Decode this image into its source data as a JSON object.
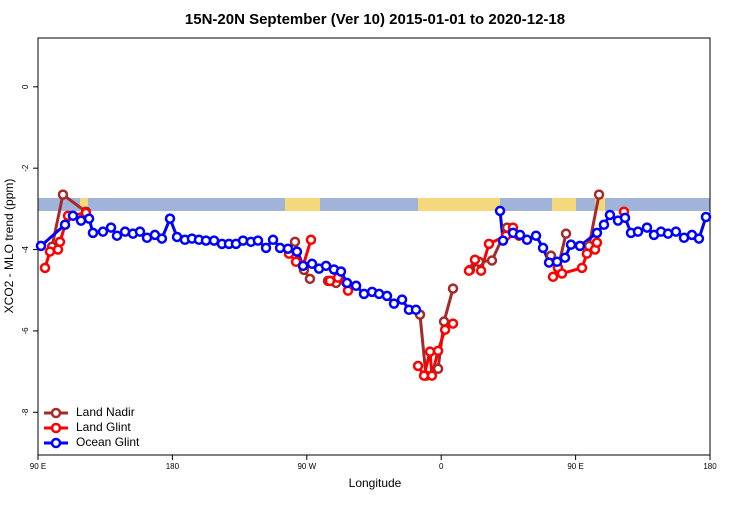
{
  "chart_data": {
    "type": "line",
    "title": "15N-20N September (Ver 10)   2015-01-01 to 2020-12-18",
    "x_label": "Longitude",
    "y_label": "XCO2 - MLO trend (ppm)",
    "xlim": [
      90,
      540
    ],
    "ylim": [
      -9.05,
      1.2
    ],
    "xticks": [
      {
        "value": 90,
        "label": "90 E"
      },
      180,
      {
        "value": 270,
        "label": "90 W"
      },
      {
        "value": 360,
        "label": "0"
      },
      {
        "value": 450,
        "label": "90 E"
      },
      {
        "value": 540,
        "label": "180"
      }
    ],
    "yticks": [
      0,
      -2,
      -4,
      -6,
      -8
    ],
    "legend": "bottomleft",
    "series": [
      {
        "name": "Land Nadir",
        "color": "#a52a2a",
        "x": [
          99.4,
          106.7,
          122.1,
          null,
          262.1,
          268.1,
          272.1,
          null,
          284.2,
          289.6,
          null,
          345.8,
          349.8,
          357.9,
          361.9,
          367.9,
          null,
          379.3,
          385.3,
          394.0,
          404.1,
          null,
          433.5,
          438.2,
          443.6,
          null,
          459.0,
          465.7
        ],
        "values": [
          -3.93,
          -2.65,
          -3.07,
          null,
          -3.81,
          -4.5,
          -4.72,
          null,
          -4.77,
          -4.82,
          null,
          -5.6,
          -7.1,
          -6.93,
          -5.77,
          -4.96,
          null,
          -4.5,
          -4.3,
          -4.27,
          -3.46,
          null,
          -4.15,
          -4.45,
          -3.61,
          null,
          -3.91,
          -2.65
        ]
      },
      {
        "name": "Land Glint",
        "color": "#ff0000",
        "x": [
          94.7,
          98.0,
          103.4,
          104.7,
          110.1,
          122.1,
          null,
          258.1,
          262.8,
          267.5,
          272.8,
          null,
          285.5,
          290.9,
          297.6,
          null,
          344.5,
          348.5,
          352.5,
          353.8,
          357.9,
          362.6,
          367.9,
          null,
          378.6,
          382.6,
          386.7,
          392.0,
          403.4,
          408.1,
          412.1,
          null,
          434.9,
          438.2,
          440.9,
          454.3,
          457.6,
          463.0,
          464.3,
          null,
          482.4
        ],
        "values": [
          -4.45,
          -4.05,
          -4.0,
          -3.81,
          -3.17,
          -3.1,
          null,
          -4.1,
          -4.3,
          -4.4,
          -3.76,
          null,
          -4.77,
          -4.69,
          -5.01,
          null,
          -6.86,
          -7.1,
          -6.51,
          -7.1,
          -6.49,
          -5.97,
          -5.82,
          null,
          -4.52,
          -4.25,
          -4.52,
          -3.86,
          -3.66,
          -3.46,
          -3.66,
          null,
          -4.67,
          -4.45,
          -4.59,
          -4.45,
          -4.1,
          -4.0,
          -3.83,
          null,
          -3.07
        ]
      },
      {
        "name": "Ocean Glint",
        "color": "#0000ff",
        "x": [
          92.0,
          108.1,
          113.4,
          118.8,
          124.2,
          126.8,
          133.5,
          138.9,
          142.9,
          148.3,
          153.6,
          158.3,
          163.0,
          168.3,
          173.0,
          178.4,
          183.1,
          188.4,
          193.1,
          197.8,
          202.5,
          207.9,
          213.2,
          217.9,
          222.6,
          227.3,
          232.6,
          237.3,
          242.7,
          247.4,
          252.1,
          257.4,
          263.4,
          267.5,
          273.5,
          278.2,
          282.9,
          288.2,
          292.9,
          296.9,
          303.0,
          308.3,
          313.7,
          318.4,
          323.7,
          328.4,
          333.8,
          338.4,
          343.1,
          null,
          399.4,
          401.4,
          408.1,
          412.8,
          417.5,
          423.5,
          428.2,
          432.2,
          437.6,
          442.9,
          446.9,
          452.9,
          464.3,
          469.0,
          473.0,
          478.4,
          483.1,
          487.1,
          491.8,
          497.8,
          502.5,
          507.2,
          511.9,
          517.2,
          522.6,
          527.9,
          532.6,
          537.3
        ],
        "values": [
          -3.91,
          -3.39,
          -3.17,
          -3.29,
          -3.24,
          -3.59,
          -3.56,
          -3.46,
          -3.66,
          -3.56,
          -3.61,
          -3.56,
          -3.71,
          -3.64,
          -3.73,
          -3.24,
          -3.69,
          -3.76,
          -3.73,
          -3.76,
          -3.78,
          -3.78,
          -3.86,
          -3.86,
          -3.86,
          -3.78,
          -3.81,
          -3.78,
          -3.96,
          -3.76,
          -3.96,
          -3.98,
          -4.05,
          -4.4,
          -4.35,
          -4.47,
          -4.4,
          -4.49,
          -4.54,
          -4.82,
          -4.89,
          -5.09,
          -5.04,
          -5.09,
          -5.14,
          -5.33,
          -5.23,
          -5.48,
          -5.48,
          null,
          -3.05,
          -3.78,
          -3.59,
          -3.64,
          -3.76,
          -3.66,
          -3.96,
          -4.32,
          -4.3,
          -4.2,
          -3.88,
          -3.91,
          -3.59,
          -3.39,
          -3.15,
          -3.29,
          -3.22,
          -3.59,
          -3.56,
          -3.46,
          -3.64,
          -3.56,
          -3.61,
          -3.56,
          -3.71,
          -3.64,
          -3.73,
          -3.2
        ]
      }
    ]
  }
}
